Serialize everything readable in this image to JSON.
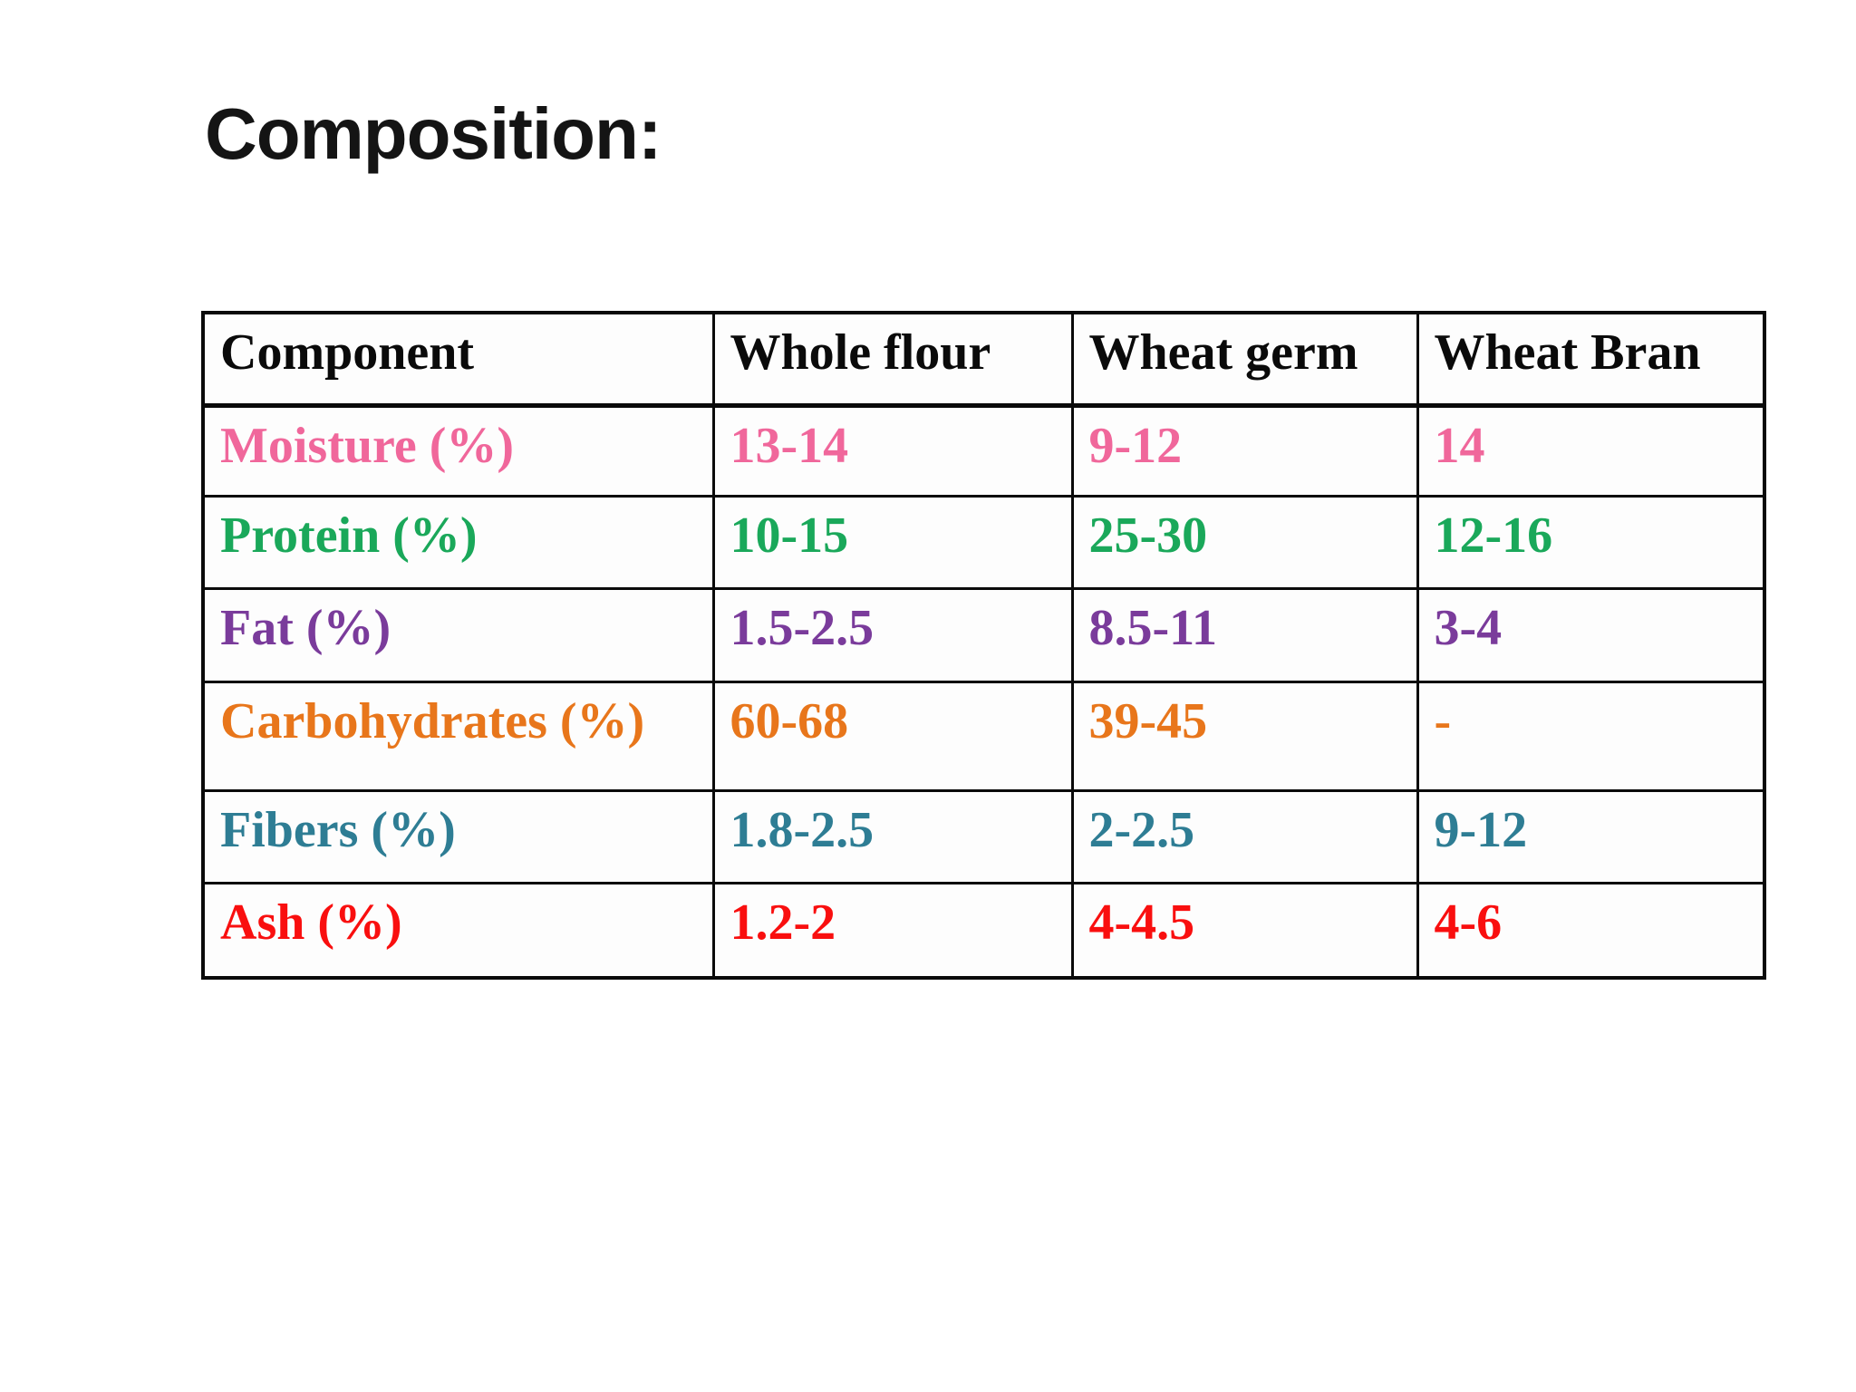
{
  "title": "Composition:",
  "table": {
    "headers": [
      "Component",
      "Whole flour",
      "Wheat germ",
      "Wheat Bran"
    ],
    "rows": [
      {
        "label": "Moisture (%)",
        "color": "#F0679B",
        "values": [
          "13-14",
          "9-12",
          "14"
        ]
      },
      {
        "label": "Protein (%)",
        "color": "#1AA85A",
        "values": [
          "10-15",
          "25-30",
          "12-16"
        ]
      },
      {
        "label": "Fat (%)",
        "color": "#7A3B9B",
        "values": [
          "1.5-2.5",
          "8.5-11",
          "3-4"
        ]
      },
      {
        "label": "Carbohydrates (%)",
        "color": "#E8761B",
        "values": [
          "60-68",
          "39-45",
          "-"
        ]
      },
      {
        "label": "Fibers (%)",
        "color": "#2E7D94",
        "values": [
          "1.8-2.5",
          "2-2.5",
          "9-12"
        ]
      },
      {
        "label": "Ash (%)",
        "color": "#F90F0F",
        "values": [
          "1.2-2",
          "4-4.5",
          "4-6"
        ]
      }
    ]
  }
}
